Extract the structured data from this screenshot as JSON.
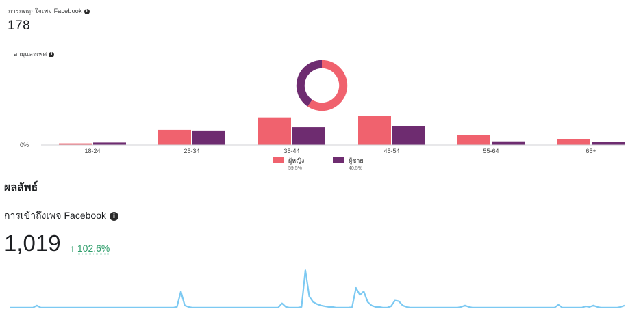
{
  "likes": {
    "label": "การกดถูกใจเพจ Facebook",
    "info_icon": "info-icon",
    "value": "178"
  },
  "age_gender": {
    "label": "อายุและเพศ",
    "info_icon": "info-icon"
  },
  "results": {
    "heading": "ผลลัพธ์",
    "reach_label": "การเข้าถึงเพจ Facebook",
    "reach_info_icon": "info-icon",
    "reach_value": "1,019",
    "reach_change_arrow": "↑",
    "reach_change_pct": "102.6%",
    "reach_change_color": "#2e9e6b"
  },
  "chart_data": [
    {
      "type": "pie",
      "labels": [
        "ผู้หญิง",
        "ผู้ชาย"
      ],
      "values": [
        59.5,
        40.5
      ],
      "colors": [
        "#f0626e",
        "#6e2c70"
      ],
      "title": "",
      "legend": "below"
    },
    {
      "type": "bar",
      "categories": [
        "18-24",
        "25-34",
        "35-44",
        "45-54",
        "55-64",
        "65+"
      ],
      "series": [
        {
          "name": "ผู้หญิง",
          "pct_label": "59.5%",
          "color": "#f0626e",
          "values": [
            1.0,
            9.2,
            16.8,
            17.8,
            6.0,
            3.4
          ]
        },
        {
          "name": "ผู้ชาย",
          "pct_label": "40.5%",
          "color": "#6e2c70",
          "values": [
            1.5,
            8.8,
            10.8,
            11.5,
            2.2,
            1.8
          ]
        }
      ],
      "y_zero_label": "0%",
      "ylim": [
        0,
        20
      ],
      "grid": false,
      "legend": "bottom"
    },
    {
      "type": "line",
      "series": [
        {
          "name": "",
          "color": "#7cc9f2",
          "values": [
            2,
            2,
            2,
            2,
            2,
            2,
            2,
            5,
            2,
            2,
            2,
            2,
            2,
            2,
            2,
            2,
            2,
            2,
            2,
            2,
            2,
            2,
            2,
            2,
            2,
            2,
            2,
            2,
            2,
            2,
            2,
            2,
            2,
            2,
            2,
            2,
            2,
            2,
            2,
            2,
            2,
            2,
            2,
            3,
            25,
            5,
            3,
            2,
            2,
            2,
            2,
            2,
            2,
            2,
            2,
            2,
            2,
            2,
            2,
            2,
            2,
            2,
            2,
            2,
            2,
            2,
            2,
            2,
            2,
            2,
            8,
            3,
            2,
            2,
            2,
            3,
            55,
            18,
            10,
            7,
            5,
            4,
            3,
            3,
            2,
            2,
            2,
            2,
            3,
            30,
            20,
            25,
            10,
            5,
            3,
            3,
            2,
            2,
            4,
            12,
            11,
            5,
            3,
            2,
            2,
            2,
            2,
            2,
            2,
            2,
            2,
            2,
            2,
            2,
            2,
            2,
            3,
            5,
            3,
            2,
            2,
            2,
            2,
            2,
            2,
            2,
            2,
            2,
            2,
            2,
            2,
            2,
            2,
            2,
            2,
            2,
            2,
            2,
            2,
            2,
            2,
            6,
            2,
            2,
            2,
            2,
            2,
            2,
            4,
            3,
            5,
            3,
            2,
            2,
            2,
            2,
            2,
            3,
            5
          ]
        }
      ],
      "ylim": [
        0,
        60
      ],
      "grid": false,
      "title": "",
      "xlabel": "",
      "ylabel": ""
    }
  ]
}
